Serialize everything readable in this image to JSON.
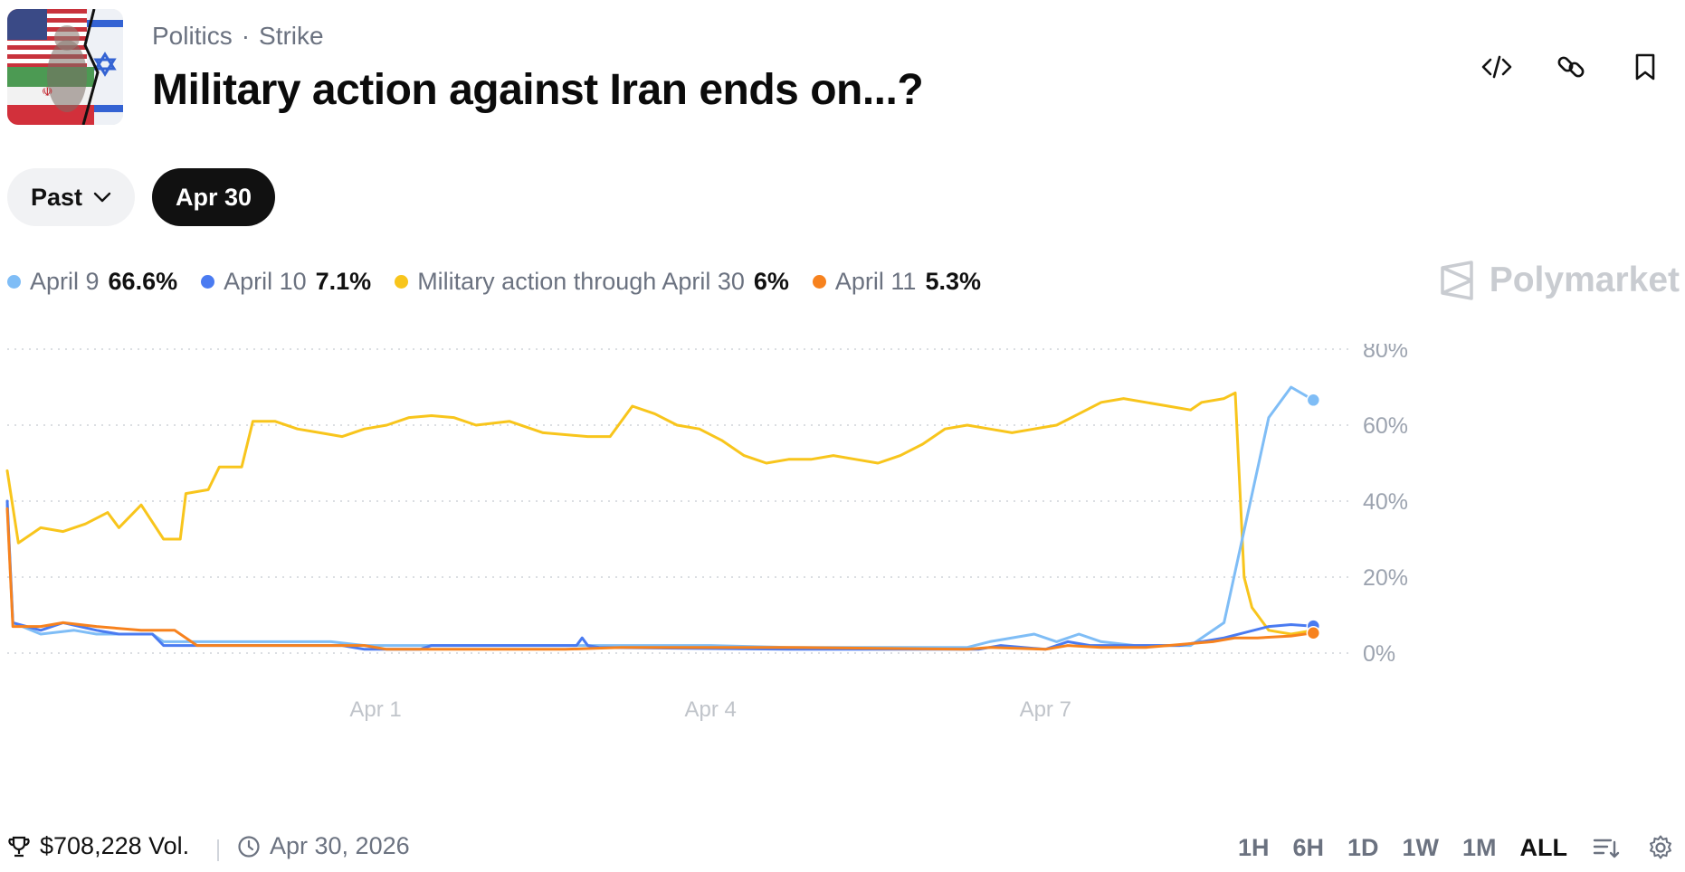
{
  "header": {
    "category": "Politics",
    "separator": "·",
    "subcategory": "Strike",
    "title": "Military action against Iran ends on...?"
  },
  "filters": {
    "past_label": "Past",
    "selected_date": "Apr 30"
  },
  "legend": [
    {
      "name": "April 9",
      "value": "66.6%",
      "color": "#7fbdf6"
    },
    {
      "name": "April 10",
      "value": "7.1%",
      "color": "#4a7bf1"
    },
    {
      "name": "Military action through April 30",
      "value": "6%",
      "color": "#f8c51c"
    },
    {
      "name": "April 11",
      "value": "5.3%",
      "color": "#f7821e"
    }
  ],
  "brand": "Polymarket",
  "footer": {
    "volume": "$708,228 Vol.",
    "end_date": "Apr 30, 2026",
    "ranges": [
      "1H",
      "6H",
      "1D",
      "1W",
      "1M",
      "ALL"
    ],
    "active_range": "ALL"
  },
  "icons": [
    "embed-icon",
    "link-icon",
    "bookmark-icon",
    "chevron-down-icon",
    "trophy-icon",
    "clock-icon",
    "polymarket-logo-icon",
    "sort-icon",
    "gear-icon"
  ],
  "chart_data": {
    "type": "line",
    "y_axis_side": "right",
    "ylim": [
      0,
      80
    ],
    "yticks": [
      0,
      20,
      40,
      60,
      80
    ],
    "ytick_labels": [
      "0%",
      "20%",
      "40%",
      "60%",
      "80%"
    ],
    "xlim": [
      0,
      11.9
    ],
    "xticks": [
      3.3,
      6.3,
      9.3
    ],
    "xtick_labels": [
      "Apr 1",
      "Apr 4",
      "Apr 7"
    ],
    "grid": true,
    "series": [
      {
        "name": "April 9",
        "color": "#7fbdf6",
        "end_marker": true,
        "points": [
          [
            0,
            39
          ],
          [
            0.05,
            8
          ],
          [
            0.3,
            5
          ],
          [
            0.6,
            6
          ],
          [
            0.8,
            5
          ],
          [
            1.3,
            5
          ],
          [
            1.4,
            3
          ],
          [
            2.9,
            3
          ],
          [
            3.2,
            2
          ],
          [
            5.8,
            2
          ],
          [
            6.3,
            2
          ],
          [
            7,
            1.5
          ],
          [
            8.6,
            1.5
          ],
          [
            8.8,
            3
          ],
          [
            9.2,
            5
          ],
          [
            9.4,
            3
          ],
          [
            9.6,
            5
          ],
          [
            9.8,
            3
          ],
          [
            10.1,
            2
          ],
          [
            10.6,
            2
          ],
          [
            10.9,
            8
          ],
          [
            11.1,
            35
          ],
          [
            11.3,
            62
          ],
          [
            11.5,
            70
          ],
          [
            11.7,
            66.6
          ]
        ]
      },
      {
        "name": "April 10",
        "color": "#4a7bf1",
        "end_marker": true,
        "points": [
          [
            0,
            40
          ],
          [
            0.05,
            8
          ],
          [
            0.3,
            6
          ],
          [
            0.5,
            8
          ],
          [
            0.8,
            6
          ],
          [
            1,
            5
          ],
          [
            1.3,
            5
          ],
          [
            1.4,
            2
          ],
          [
            3,
            2
          ],
          [
            3.2,
            1
          ],
          [
            3.7,
            1
          ],
          [
            3.8,
            2
          ],
          [
            5.1,
            2
          ],
          [
            5.15,
            4
          ],
          [
            5.2,
            2
          ],
          [
            5.3,
            1.5
          ],
          [
            7,
            1
          ],
          [
            8.7,
            1
          ],
          [
            8.9,
            2
          ],
          [
            9.3,
            1
          ],
          [
            9.5,
            3
          ],
          [
            9.7,
            2
          ],
          [
            10.5,
            2
          ],
          [
            10.9,
            4
          ],
          [
            11.3,
            7
          ],
          [
            11.5,
            7.5
          ],
          [
            11.7,
            7.1
          ]
        ]
      },
      {
        "name": "Military action through April 30",
        "color": "#f8c51c",
        "end_marker": false,
        "points": [
          [
            0,
            48
          ],
          [
            0.1,
            29
          ],
          [
            0.3,
            33
          ],
          [
            0.5,
            32
          ],
          [
            0.7,
            34
          ],
          [
            0.9,
            37
          ],
          [
            1,
            33
          ],
          [
            1.2,
            39
          ],
          [
            1.4,
            30
          ],
          [
            1.55,
            30
          ],
          [
            1.6,
            42
          ],
          [
            1.8,
            43
          ],
          [
            1.9,
            49
          ],
          [
            2.1,
            49
          ],
          [
            2.2,
            61
          ],
          [
            2.4,
            61
          ],
          [
            2.6,
            59
          ],
          [
            2.8,
            58
          ],
          [
            3,
            57
          ],
          [
            3.2,
            59
          ],
          [
            3.4,
            60
          ],
          [
            3.6,
            62
          ],
          [
            3.8,
            62.5
          ],
          [
            4,
            62
          ],
          [
            4.2,
            60
          ],
          [
            4.5,
            61
          ],
          [
            4.8,
            58
          ],
          [
            5.2,
            57
          ],
          [
            5.4,
            57
          ],
          [
            5.6,
            65
          ],
          [
            5.8,
            63
          ],
          [
            6,
            60
          ],
          [
            6.2,
            59
          ],
          [
            6.4,
            56
          ],
          [
            6.6,
            52
          ],
          [
            6.8,
            50
          ],
          [
            7,
            51
          ],
          [
            7.2,
            51
          ],
          [
            7.4,
            52
          ],
          [
            7.6,
            51
          ],
          [
            7.8,
            50
          ],
          [
            8,
            52
          ],
          [
            8.2,
            55
          ],
          [
            8.4,
            59
          ],
          [
            8.6,
            60
          ],
          [
            8.8,
            59
          ],
          [
            9,
            58
          ],
          [
            9.2,
            59
          ],
          [
            9.4,
            60
          ],
          [
            9.6,
            63
          ],
          [
            9.8,
            66
          ],
          [
            10,
            67
          ],
          [
            10.2,
            66
          ],
          [
            10.4,
            65
          ],
          [
            10.6,
            64
          ],
          [
            10.7,
            66
          ],
          [
            10.9,
            67
          ],
          [
            11,
            68.5
          ],
          [
            11.08,
            20
          ],
          [
            11.15,
            12
          ],
          [
            11.3,
            6
          ],
          [
            11.5,
            5
          ],
          [
            11.7,
            6
          ]
        ]
      },
      {
        "name": "April 11",
        "color": "#f7821e",
        "end_marker": true,
        "points": [
          [
            0,
            38
          ],
          [
            0.05,
            7
          ],
          [
            0.3,
            7
          ],
          [
            0.5,
            8
          ],
          [
            0.8,
            7
          ],
          [
            1.2,
            6
          ],
          [
            1.5,
            6
          ],
          [
            1.7,
            2
          ],
          [
            3.2,
            2
          ],
          [
            3.4,
            1
          ],
          [
            4.5,
            1
          ],
          [
            5,
            1
          ],
          [
            5.5,
            1.5
          ],
          [
            6,
            1.5
          ],
          [
            7,
            1.5
          ],
          [
            8.6,
            1
          ],
          [
            8.8,
            1.5
          ],
          [
            9.3,
            1
          ],
          [
            9.5,
            2
          ],
          [
            9.8,
            1.5
          ],
          [
            10.2,
            1.5
          ],
          [
            10.4,
            2
          ],
          [
            10.6,
            2.5
          ],
          [
            10.8,
            3
          ],
          [
            11,
            4
          ],
          [
            11.2,
            4
          ],
          [
            11.5,
            4.5
          ],
          [
            11.7,
            5.3
          ]
        ]
      }
    ]
  }
}
